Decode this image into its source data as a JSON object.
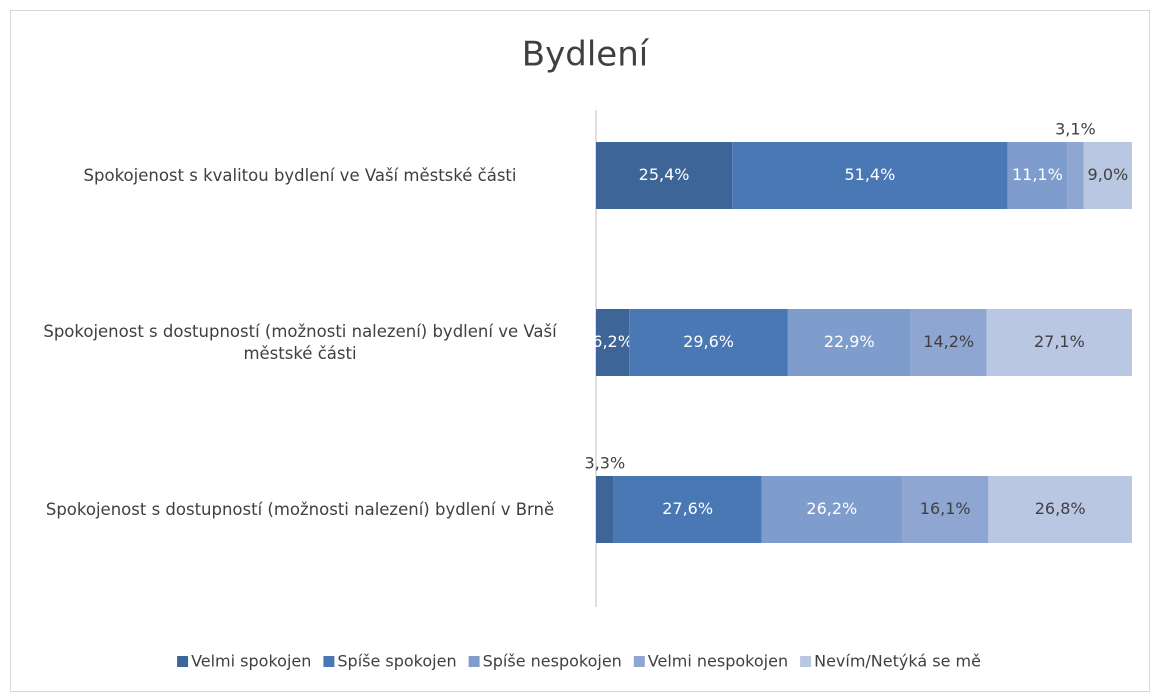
{
  "chart_data": {
    "type": "stacked-bar-horizontal",
    "title": "Bydlení",
    "categories": [
      "Spokojenost s kvalitou bydlení ve Vaší městské části",
      "Spokojenost s dostupností (možnosti nalezení) bydlení ve Vaší městské části",
      "Spokojenost s dostupností (možnosti nalezení) bydlení v Brně"
    ],
    "xlim": [
      0,
      100
    ],
    "legend": "bottom",
    "series": [
      {
        "name": "Velmi spokojen",
        "color": "#3e6598",
        "values": [
          25.4,
          6.2,
          3.3
        ],
        "value_labels": [
          "25,4%",
          "6,2%",
          "3,3%"
        ]
      },
      {
        "name": "Spíše spokojen",
        "color": "#4a78b4",
        "values": [
          51.4,
          29.6,
          27.6
        ],
        "value_labels": [
          "51,4%",
          "29,6%",
          "27,6%"
        ]
      },
      {
        "name": "Spíše nespokojen",
        "color": "#7f9dcc",
        "values": [
          11.1,
          22.9,
          26.2
        ],
        "value_labels": [
          "11,1%",
          "22,9%",
          "26,2%"
        ]
      },
      {
        "name": "Velmi nespokojen",
        "color": "#8ea6d1",
        "values": [
          3.1,
          14.2,
          16.1
        ],
        "value_labels": [
          "3,1%",
          "14,2%",
          "16,1%"
        ]
      },
      {
        "name": "Nevím/Netýká se mě",
        "color": "#b9c7e3",
        "values": [
          9.0,
          27.1,
          26.8
        ],
        "value_labels": [
          "9,0%",
          "27,1%",
          "26,8%"
        ]
      }
    ]
  }
}
